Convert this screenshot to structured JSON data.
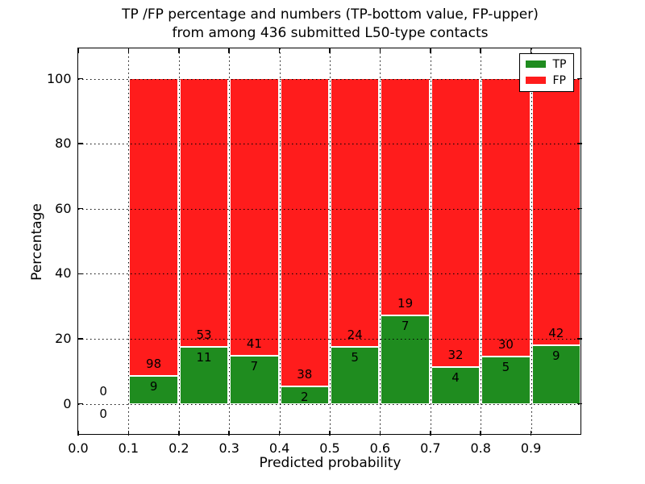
{
  "figure": {
    "title_line1": "TP /FP percentage and numbers (TP-bottom value, FP-upper)",
    "title_line2": "from among 436 submitted L50-type contacts",
    "xlabel": "Predicted probability",
    "ylabel": "Percentage"
  },
  "legend": {
    "position": "upper-right",
    "entries": [
      {
        "label": "TP",
        "color": "#1f8c1f"
      },
      {
        "label": "FP",
        "color": "#ff1c1c"
      }
    ]
  },
  "chart_data": {
    "type": "bar",
    "stacked": true,
    "title": "TP /FP percentage and numbers (TP-bottom value, FP-upper) from among 436 submitted L50-type contacts",
    "xlabel": "Predicted probability",
    "ylabel": "Percentage",
    "xlim": [
      0.0,
      1.0
    ],
    "ylim": [
      -10,
      110
    ],
    "grid": true,
    "legend_position": "upper right",
    "x_ticks": [
      "0.0",
      "0.1",
      "0.2",
      "0.3",
      "0.4",
      "0.5",
      "0.6",
      "0.7",
      "0.8",
      "0.9"
    ],
    "y_ticks": [
      0,
      20,
      40,
      60,
      80,
      100
    ],
    "total_submitted": 436,
    "series": [
      {
        "name": "TP",
        "color": "#1f8c1f",
        "counts": [
          0,
          9,
          11,
          7,
          2,
          5,
          7,
          4,
          5,
          9
        ]
      },
      {
        "name": "FP",
        "color": "#ff1c1c",
        "counts": [
          0,
          98,
          53,
          41,
          38,
          24,
          19,
          32,
          30,
          42
        ]
      }
    ],
    "bins": [
      {
        "range": [
          0.0,
          0.1
        ],
        "tp": 0,
        "fp": 0,
        "tp_pct": 0,
        "fp_pct": 0
      },
      {
        "range": [
          0.1,
          0.2
        ],
        "tp": 9,
        "fp": 98,
        "tp_pct": 8.41,
        "fp_pct": 91.59
      },
      {
        "range": [
          0.2,
          0.3
        ],
        "tp": 11,
        "fp": 53,
        "tp_pct": 17.19,
        "fp_pct": 82.81
      },
      {
        "range": [
          0.3,
          0.4
        ],
        "tp": 7,
        "fp": 41,
        "tp_pct": 14.58,
        "fp_pct": 85.42
      },
      {
        "range": [
          0.4,
          0.5
        ],
        "tp": 2,
        "fp": 38,
        "tp_pct": 5.0,
        "fp_pct": 95.0
      },
      {
        "range": [
          0.5,
          0.6
        ],
        "tp": 5,
        "fp": 24,
        "tp_pct": 17.24,
        "fp_pct": 82.76
      },
      {
        "range": [
          0.6,
          0.7
        ],
        "tp": 7,
        "fp": 19,
        "tp_pct": 26.92,
        "fp_pct": 73.08
      },
      {
        "range": [
          0.7,
          0.8
        ],
        "tp": 4,
        "fp": 32,
        "tp_pct": 11.11,
        "fp_pct": 88.89
      },
      {
        "range": [
          0.8,
          0.9
        ],
        "tp": 5,
        "fp": 30,
        "tp_pct": 14.29,
        "fp_pct": 85.71
      },
      {
        "range": [
          0.9,
          1.0
        ],
        "tp": 9,
        "fp": 42,
        "tp_pct": 17.65,
        "fp_pct": 82.35
      }
    ]
  }
}
